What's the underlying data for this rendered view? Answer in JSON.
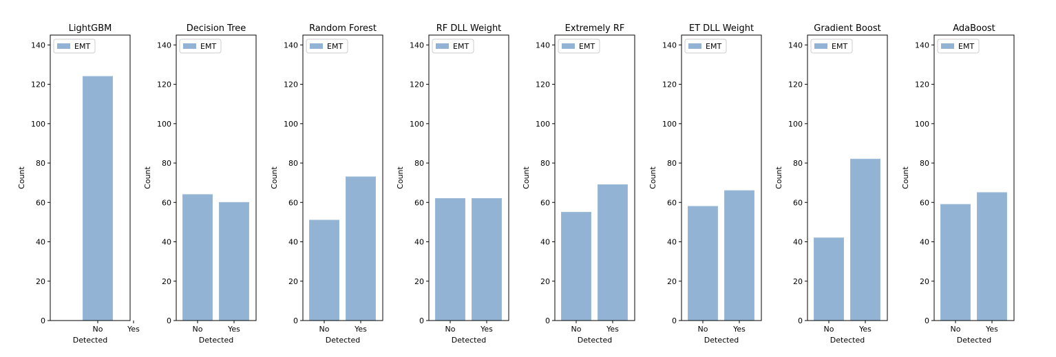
{
  "chart_data": [
    {
      "type": "bar",
      "title": "LightGBM",
      "xlabel": "Detected",
      "ylabel": "Count",
      "categories": [
        "No",
        "Yes"
      ],
      "series": [
        {
          "name": "EMT",
          "values": [
            124,
            null
          ]
        }
      ],
      "ylim": [
        0,
        145
      ],
      "yticks": [
        0,
        20,
        40,
        60,
        80,
        100,
        120,
        140
      ],
      "legend": "upper-left",
      "grid": false
    },
    {
      "type": "bar",
      "title": "Decision Tree",
      "xlabel": "Detected",
      "ylabel": "Count",
      "categories": [
        "No",
        "Yes"
      ],
      "series": [
        {
          "name": "EMT",
          "values": [
            64,
            60
          ]
        }
      ],
      "ylim": [
        0,
        145
      ],
      "yticks": [
        0,
        20,
        40,
        60,
        80,
        100,
        120,
        140
      ],
      "legend": "upper-left",
      "grid": false
    },
    {
      "type": "bar",
      "title": "Random Forest",
      "xlabel": "Detected",
      "ylabel": "Count",
      "categories": [
        "No",
        "Yes"
      ],
      "series": [
        {
          "name": "EMT",
          "values": [
            51,
            73
          ]
        }
      ],
      "ylim": [
        0,
        145
      ],
      "yticks": [
        0,
        20,
        40,
        60,
        80,
        100,
        120,
        140
      ],
      "legend": "upper-left",
      "grid": false
    },
    {
      "type": "bar",
      "title": "RF DLL Weight",
      "xlabel": "Detected",
      "ylabel": "Count",
      "categories": [
        "No",
        "Yes"
      ],
      "series": [
        {
          "name": "EMT",
          "values": [
            62,
            62
          ]
        }
      ],
      "ylim": [
        0,
        145
      ],
      "yticks": [
        0,
        20,
        40,
        60,
        80,
        100,
        120,
        140
      ],
      "legend": "upper-left",
      "grid": false
    },
    {
      "type": "bar",
      "title": "Extremely RF",
      "xlabel": "Detected",
      "ylabel": "Count",
      "categories": [
        "No",
        "Yes"
      ],
      "series": [
        {
          "name": "EMT",
          "values": [
            55,
            69
          ]
        }
      ],
      "ylim": [
        0,
        145
      ],
      "yticks": [
        0,
        20,
        40,
        60,
        80,
        100,
        120,
        140
      ],
      "legend": "upper-left",
      "grid": false
    },
    {
      "type": "bar",
      "title": "ET DLL Weight",
      "xlabel": "Detected",
      "ylabel": "Count",
      "categories": [
        "No",
        "Yes"
      ],
      "series": [
        {
          "name": "EMT",
          "values": [
            58,
            66
          ]
        }
      ],
      "ylim": [
        0,
        145
      ],
      "yticks": [
        0,
        20,
        40,
        60,
        80,
        100,
        120,
        140
      ],
      "legend": "upper-left",
      "grid": false
    },
    {
      "type": "bar",
      "title": "Gradient Boost",
      "xlabel": "Detected",
      "ylabel": "Count",
      "categories": [
        "No",
        "Yes"
      ],
      "series": [
        {
          "name": "EMT",
          "values": [
            42,
            82
          ]
        }
      ],
      "ylim": [
        0,
        145
      ],
      "yticks": [
        0,
        20,
        40,
        60,
        80,
        100,
        120,
        140
      ],
      "legend": "upper-left",
      "grid": false
    },
    {
      "type": "bar",
      "title": "AdaBoost",
      "xlabel": "Detected",
      "ylabel": "Count",
      "categories": [
        "No",
        "Yes"
      ],
      "series": [
        {
          "name": "EMT",
          "values": [
            59,
            65
          ]
        }
      ],
      "ylim": [
        0,
        145
      ],
      "yticks": [
        0,
        20,
        40,
        60,
        80,
        100,
        120,
        140
      ],
      "legend": "upper-left",
      "grid": false
    }
  ],
  "colors": {
    "bar": "#92b3d3",
    "bar_edge": "#9dbbd8",
    "axis": "#000000"
  }
}
